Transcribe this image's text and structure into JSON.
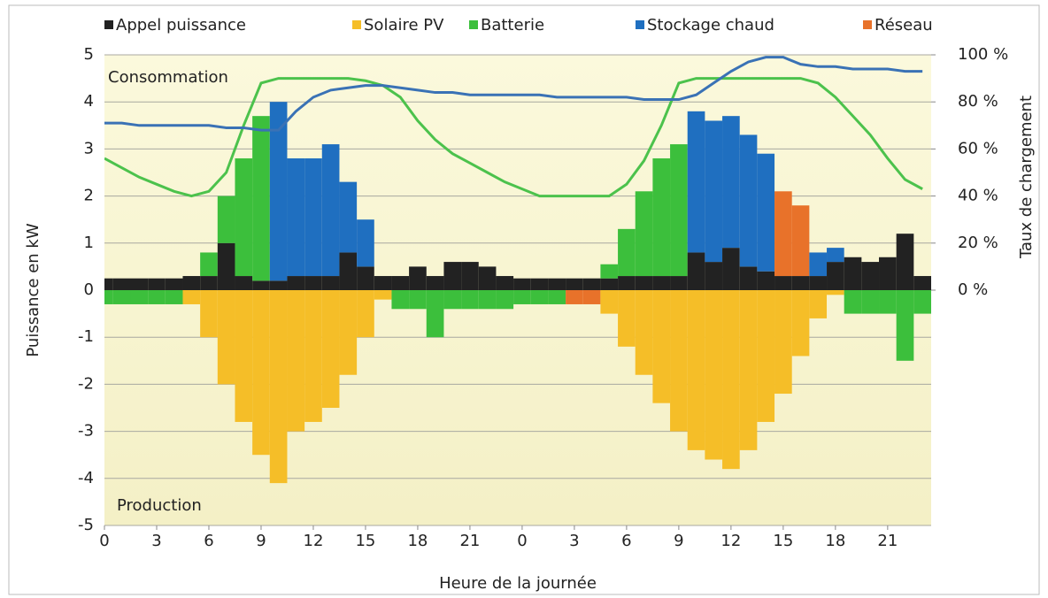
{
  "chart_data": {
    "type": "bar",
    "x_label": "Heure de la journée",
    "y_label": "Puissance en kW",
    "y2_label": "Taux de chargement",
    "annotations": [
      "Consommation",
      "Production"
    ],
    "x": [
      0,
      1,
      2,
      3,
      4,
      5,
      6,
      7,
      8,
      9,
      10,
      11,
      12,
      13,
      14,
      15,
      16,
      17,
      18,
      19,
      20,
      21,
      22,
      23,
      24,
      25,
      26,
      27,
      28,
      29,
      30,
      31,
      32,
      33,
      34,
      35,
      36,
      37,
      38,
      39,
      40,
      41,
      42,
      43,
      44,
      45,
      46,
      47
    ],
    "xlim": [
      0,
      47.5
    ],
    "xticks": [
      0,
      3,
      6,
      9,
      12,
      15,
      18,
      21,
      {
        "value": 24,
        "label": "0"
      },
      {
        "value": 27,
        "label": "3"
      },
      {
        "value": 30,
        "label": "6"
      },
      {
        "value": 33,
        "label": "9"
      },
      {
        "value": 36,
        "label": "12"
      },
      {
        "value": 39,
        "label": "15"
      },
      {
        "value": 42,
        "label": "18"
      },
      {
        "value": 45,
        "label": "21"
      }
    ],
    "ylim": [
      -5,
      5
    ],
    "yticks": [
      -5,
      -4,
      -3,
      -2,
      -1,
      0,
      1,
      2,
      3,
      4,
      5
    ],
    "y2lim": [
      -100,
      100
    ],
    "y2ticks": [
      {
        "value": 0,
        "label": "0 %"
      },
      {
        "value": 20,
        "label": "20 %"
      },
      {
        "value": 40,
        "label": "40 %"
      },
      {
        "value": 60,
        "label": "60 %"
      },
      {
        "value": 80,
        "label": "80 %"
      },
      {
        "value": 100,
        "label": "100 %"
      }
    ],
    "grid": true,
    "series": [
      {
        "name": "Appel puissance",
        "color": "#222222",
        "values": [
          0.25,
          0.25,
          0.25,
          0.25,
          0.25,
          0.3,
          0.3,
          1.0,
          0.3,
          0.2,
          0.2,
          0.3,
          0.3,
          0.3,
          0.8,
          0.5,
          0.3,
          0.3,
          0.5,
          0.3,
          0.6,
          0.6,
          0.5,
          0.3,
          0.25,
          0.25,
          0.25,
          0.25,
          0.25,
          0.25,
          0.3,
          0.3,
          0.3,
          0.3,
          0.8,
          0.6,
          0.9,
          0.5,
          0.4,
          0.3,
          0.3,
          0.3,
          0.6,
          0.7,
          0.6,
          0.7,
          1.2,
          0.3
        ]
      },
      {
        "name": "Solaire PV",
        "color": "#f5be28",
        "values": [
          0,
          0,
          0,
          0,
          0,
          -0.3,
          -1.0,
          -2.0,
          -2.8,
          -3.5,
          -4.1,
          -3.0,
          -2.8,
          -2.5,
          -1.8,
          -1.0,
          -0.2,
          0,
          0,
          0,
          0,
          0,
          0,
          0,
          0,
          0,
          0,
          0,
          0,
          -0.5,
          -1.2,
          -1.8,
          -2.4,
          -3.0,
          -3.4,
          -3.6,
          -3.8,
          -3.4,
          -2.8,
          -2.2,
          -1.4,
          -0.6,
          -0.1,
          0,
          0,
          0,
          0,
          0
        ]
      },
      {
        "name": "Batterie",
        "color": "#3cbf3c",
        "values": [
          -0.3,
          -0.3,
          -0.3,
          -0.3,
          -0.3,
          0,
          0.5,
          1.0,
          2.5,
          3.5,
          0,
          0,
          0,
          0,
          0,
          0,
          0,
          -0.4,
          -0.4,
          -1.0,
          -0.4,
          -0.4,
          -0.4,
          -0.4,
          -0.3,
          -0.3,
          -0.3,
          0,
          0,
          0.3,
          1.0,
          1.8,
          2.5,
          2.8,
          0,
          0,
          0,
          0,
          0,
          0,
          0,
          0,
          0,
          -0.5,
          -0.5,
          -0.5,
          -1.5,
          -0.5
        ]
      },
      {
        "name": "Stockage chaud",
        "color": "#1f6fc0",
        "values": [
          0,
          0,
          0,
          0,
          0,
          0,
          0,
          0,
          0,
          0,
          3.8,
          2.5,
          2.5,
          2.8,
          1.5,
          1.0,
          0,
          0,
          0,
          0,
          0,
          0,
          0,
          0,
          0,
          0,
          0,
          0,
          0,
          0,
          0,
          0,
          0,
          0,
          3.0,
          3.0,
          2.8,
          2.8,
          2.5,
          0,
          0,
          0.5,
          0.3,
          0,
          0,
          0,
          0,
          0
        ]
      },
      {
        "name": "Réseau",
        "color": "#e8722a",
        "values": [
          0,
          0,
          0,
          0,
          0,
          0,
          0,
          0,
          0,
          0,
          0,
          0,
          0,
          0,
          0,
          0,
          0,
          0,
          0,
          0,
          0,
          0,
          0,
          0,
          0,
          0,
          0,
          -0.3,
          -0.3,
          0,
          0,
          0,
          0,
          0,
          0,
          0,
          0,
          0,
          0,
          1.8,
          1.5,
          0,
          0,
          0,
          0,
          0,
          0,
          0
        ]
      }
    ],
    "lines": [
      {
        "color": "#4cc24c",
        "axis": "y2",
        "values": [
          56,
          52,
          48,
          45,
          42,
          40,
          42,
          50,
          70,
          88,
          90,
          90,
          90,
          90,
          90,
          89,
          87,
          82,
          72,
          64,
          58,
          54,
          50,
          46,
          43,
          40,
          40,
          40,
          40,
          40,
          45,
          55,
          70,
          88,
          90,
          90,
          90,
          90,
          90,
          90,
          90,
          88,
          82,
          74,
          66,
          56,
          47,
          43
        ]
      },
      {
        "color": "#3a72b5",
        "axis": "y2",
        "values": [
          71,
          71,
          70,
          70,
          70,
          70,
          70,
          69,
          69,
          68,
          68,
          76,
          82,
          85,
          86,
          87,
          87,
          86,
          85,
          84,
          84,
          83,
          83,
          83,
          83,
          83,
          82,
          82,
          82,
          82,
          82,
          81,
          81,
          81,
          83,
          88,
          93,
          97,
          99,
          99,
          96,
          95,
          95,
          94,
          94,
          94,
          93,
          93
        ]
      }
    ]
  }
}
